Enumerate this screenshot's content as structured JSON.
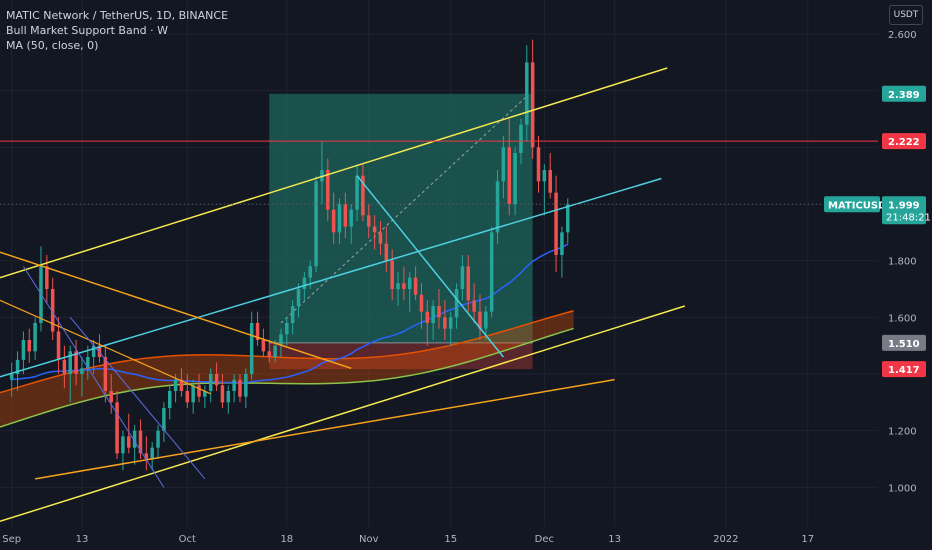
{
  "legend": {
    "symbol_line": "MATIC Network / TetherUS, 1D, BINANCE",
    "indicator_1": "Bull Market Support Band · W",
    "indicator_2": "MA (50, close, 0)"
  },
  "currency_button": "USDT",
  "colors": {
    "background": "#131722",
    "up": "#26a69a",
    "down": "#ef5350",
    "grid": "#1f2330",
    "channel_yellow": "#f5e94f",
    "cyan_line": "#4dd0e1",
    "orange_line": "#f7a21b",
    "horizontal_red": "#f23645",
    "ma_blue": "#2962ff",
    "band_green": "#8bc34a",
    "band_orange": "#e65100",
    "target_box": "#1e6b5f",
    "stop_box": "#6b2a30"
  },
  "chart_data": {
    "type": "candlestick",
    "symbol": "MATICUSDT",
    "interval": "1D",
    "y_axis": {
      "ticks": [
        1.0,
        1.2,
        1.4,
        1.6,
        1.8,
        2.0,
        2.2,
        2.4,
        2.6
      ],
      "labels": [
        "1.000",
        "1.200",
        "",
        "1.600",
        "1.800",
        "",
        "",
        "",
        "2.600"
      ],
      "range": [
        0.86,
        2.72
      ]
    },
    "x_axis": {
      "labels": [
        "Sep",
        "13",
        "Oct",
        "18",
        "Nov",
        "15",
        "Dec",
        "13",
        "2022",
        "17"
      ],
      "label_day_index": [
        0,
        12,
        30,
        47,
        61,
        75,
        91,
        103,
        122,
        136
      ],
      "day_range": [
        -2,
        148
      ]
    },
    "price_tags": [
      {
        "label": "2.389",
        "value": 2.389,
        "color": "#26a69a"
      },
      {
        "label": "2.222",
        "value": 2.222,
        "color": "#f23645"
      },
      {
        "label": "1.999",
        "value": 1.999,
        "color": "#26a69a",
        "name": "MATICUSDT",
        "countdown": "21:48:21"
      },
      {
        "label": "1.510",
        "value": 1.51,
        "color": "#787b86"
      },
      {
        "label": "1.417",
        "value": 1.417,
        "color": "#f23645"
      }
    ],
    "last_price": 1.999,
    "candles": [
      [
        1.38,
        1.44,
        1.32,
        1.4
      ],
      [
        1.4,
        1.48,
        1.34,
        1.45
      ],
      [
        1.45,
        1.55,
        1.4,
        1.52
      ],
      [
        1.52,
        1.56,
        1.44,
        1.48
      ],
      [
        1.48,
        1.6,
        1.45,
        1.58
      ],
      [
        1.58,
        1.85,
        1.55,
        1.78
      ],
      [
        1.78,
        1.82,
        1.65,
        1.7
      ],
      [
        1.7,
        1.74,
        1.52,
        1.55
      ],
      [
        1.55,
        1.6,
        1.4,
        1.45
      ],
      [
        1.45,
        1.5,
        1.35,
        1.4
      ],
      [
        1.4,
        1.5,
        1.3,
        1.48
      ],
      [
        1.48,
        1.52,
        1.36,
        1.4
      ],
      [
        1.4,
        1.46,
        1.32,
        1.42
      ],
      [
        1.42,
        1.5,
        1.38,
        1.46
      ],
      [
        1.46,
        1.52,
        1.4,
        1.5
      ],
      [
        1.5,
        1.54,
        1.44,
        1.46
      ],
      [
        1.46,
        1.5,
        1.3,
        1.34
      ],
      [
        1.34,
        1.4,
        1.26,
        1.3
      ],
      [
        1.3,
        1.34,
        1.1,
        1.12
      ],
      [
        1.12,
        1.2,
        1.06,
        1.18
      ],
      [
        1.18,
        1.26,
        1.12,
        1.14
      ],
      [
        1.14,
        1.22,
        1.08,
        1.2
      ],
      [
        1.2,
        1.24,
        1.1,
        1.12
      ],
      [
        1.12,
        1.18,
        1.06,
        1.1
      ],
      [
        1.1,
        1.16,
        1.06,
        1.14
      ],
      [
        1.14,
        1.22,
        1.1,
        1.2
      ],
      [
        1.2,
        1.3,
        1.16,
        1.28
      ],
      [
        1.28,
        1.36,
        1.24,
        1.34
      ],
      [
        1.34,
        1.4,
        1.3,
        1.38
      ],
      [
        1.38,
        1.42,
        1.32,
        1.34
      ],
      [
        1.34,
        1.4,
        1.28,
        1.3
      ],
      [
        1.3,
        1.38,
        1.26,
        1.36
      ],
      [
        1.36,
        1.4,
        1.3,
        1.32
      ],
      [
        1.32,
        1.36,
        1.28,
        1.34
      ],
      [
        1.34,
        1.42,
        1.3,
        1.4
      ],
      [
        1.4,
        1.44,
        1.34,
        1.36
      ],
      [
        1.36,
        1.4,
        1.28,
        1.3
      ],
      [
        1.3,
        1.36,
        1.26,
        1.34
      ],
      [
        1.34,
        1.4,
        1.3,
        1.38
      ],
      [
        1.38,
        1.4,
        1.3,
        1.32
      ],
      [
        1.32,
        1.42,
        1.28,
        1.4
      ],
      [
        1.4,
        1.62,
        1.38,
        1.58
      ],
      [
        1.58,
        1.62,
        1.5,
        1.52
      ],
      [
        1.52,
        1.56,
        1.46,
        1.48
      ],
      [
        1.48,
        1.52,
        1.44,
        1.46
      ],
      [
        1.46,
        1.52,
        1.44,
        1.5
      ],
      [
        1.5,
        1.56,
        1.46,
        1.54
      ],
      [
        1.54,
        1.6,
        1.5,
        1.58
      ],
      [
        1.58,
        1.66,
        1.54,
        1.64
      ],
      [
        1.64,
        1.72,
        1.6,
        1.7
      ],
      [
        1.7,
        1.76,
        1.66,
        1.74
      ],
      [
        1.74,
        1.8,
        1.7,
        1.78
      ],
      [
        1.78,
        2.1,
        1.76,
        2.08
      ],
      [
        2.08,
        2.22,
        2.0,
        2.12
      ],
      [
        2.12,
        2.16,
        1.94,
        1.98
      ],
      [
        1.98,
        2.04,
        1.86,
        1.9
      ],
      [
        1.9,
        2.02,
        1.86,
        2.0
      ],
      [
        2.0,
        2.04,
        1.88,
        1.92
      ],
      [
        1.92,
        2.0,
        1.86,
        1.98
      ],
      [
        1.98,
        2.14,
        1.94,
        2.1
      ],
      [
        2.1,
        2.14,
        1.94,
        1.96
      ],
      [
        1.96,
        2.0,
        1.88,
        1.92
      ],
      [
        1.92,
        1.96,
        1.84,
        1.9
      ],
      [
        1.9,
        1.94,
        1.82,
        1.86
      ],
      [
        1.86,
        1.92,
        1.76,
        1.8
      ],
      [
        1.8,
        1.84,
        1.66,
        1.7
      ],
      [
        1.7,
        1.76,
        1.64,
        1.72
      ],
      [
        1.72,
        1.78,
        1.66,
        1.7
      ],
      [
        1.7,
        1.76,
        1.62,
        1.74
      ],
      [
        1.74,
        1.78,
        1.66,
        1.68
      ],
      [
        1.68,
        1.72,
        1.56,
        1.62
      ],
      [
        1.62,
        1.66,
        1.5,
        1.58
      ],
      [
        1.58,
        1.66,
        1.52,
        1.64
      ],
      [
        1.64,
        1.7,
        1.56,
        1.6
      ],
      [
        1.6,
        1.66,
        1.52,
        1.56
      ],
      [
        1.56,
        1.62,
        1.5,
        1.6
      ],
      [
        1.6,
        1.72,
        1.56,
        1.7
      ],
      [
        1.7,
        1.82,
        1.66,
        1.78
      ],
      [
        1.78,
        1.82,
        1.62,
        1.66
      ],
      [
        1.66,
        1.72,
        1.58,
        1.62
      ],
      [
        1.62,
        1.68,
        1.52,
        1.56
      ],
      [
        1.56,
        1.64,
        1.52,
        1.62
      ],
      [
        1.62,
        1.92,
        1.6,
        1.9
      ],
      [
        1.9,
        2.12,
        1.86,
        2.08
      ],
      [
        2.08,
        2.24,
        2.02,
        2.2
      ],
      [
        2.2,
        2.3,
        1.96,
        2.0
      ],
      [
        2.0,
        2.2,
        1.96,
        2.18
      ],
      [
        2.18,
        2.3,
        2.14,
        2.28
      ],
      [
        2.28,
        2.56,
        2.22,
        2.5
      ],
      [
        2.5,
        2.58,
        2.16,
        2.2
      ],
      [
        2.2,
        2.24,
        2.04,
        2.08
      ],
      [
        2.08,
        2.14,
        1.96,
        2.12
      ],
      [
        2.12,
        2.18,
        2.02,
        2.04
      ],
      [
        2.04,
        2.1,
        1.76,
        1.82
      ],
      [
        1.82,
        1.92,
        1.74,
        1.9
      ],
      [
        1.9,
        2.02,
        1.86,
        1.999
      ]
    ]
  }
}
